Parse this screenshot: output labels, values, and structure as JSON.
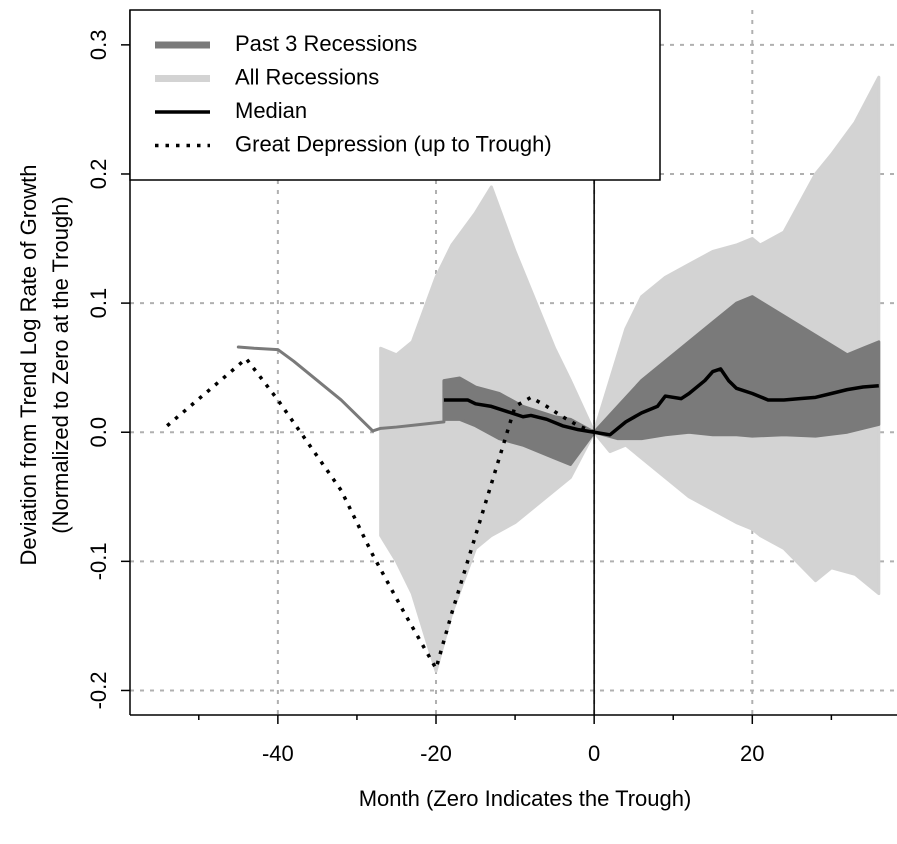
{
  "chart_data": {
    "type": "line",
    "xlabel": "Month (Zero Indicates the Trough)",
    "ylabel": [
      "Deviation from Trend Log Rate of Growth",
      "(Normalized to Zero at the Trough)"
    ],
    "xlim": [
      -58.7,
      38.3
    ],
    "ylim": [
      -0.219,
      0.327
    ],
    "xticks": [
      -40,
      -20,
      0,
      20
    ],
    "xminorticks": [
      -50,
      -30,
      -10,
      10,
      30
    ],
    "yticks": [
      {
        "value": -0.2,
        "label": "-0.2"
      },
      {
        "value": -0.1,
        "label": "-0.1"
      },
      {
        "value": 0,
        "label": "0.0"
      },
      0.1,
      0.2,
      0.3
    ],
    "grid": true,
    "vline": 0,
    "legend": "top-left",
    "series": [
      {
        "name": "Past 3 Recessions",
        "color": "#7a7a7a",
        "kind": "band",
        "x": [
          -45,
          -43,
          -40,
          -38,
          -35,
          -32,
          -30,
          -28,
          -27,
          -25,
          -22,
          -19,
          -19,
          -17,
          -15,
          -12,
          -9,
          -5,
          -3,
          0,
          3,
          6,
          9,
          12,
          15,
          18,
          20,
          24,
          28,
          32,
          34,
          36
        ],
        "upper": [
          0.066,
          0.065,
          0.064,
          0.055,
          0.04,
          0.025,
          0.013,
          0.001,
          0.003,
          0.004,
          0.006,
          0.008,
          0.04,
          0.042,
          0.035,
          0.03,
          0.02,
          0.012,
          0.01,
          0,
          0.02,
          0.04,
          0.055,
          0.07,
          0.085,
          0.1,
          0.105,
          0.09,
          0.075,
          0.06,
          0.065,
          0.07
        ],
        "lower": [
          0.066,
          0.065,
          0.064,
          0.055,
          0.04,
          0.025,
          0.013,
          0.001,
          0.003,
          0.004,
          0.006,
          0.008,
          0.01,
          0.01,
          0.005,
          -0.005,
          -0.01,
          -0.02,
          -0.025,
          0,
          -0.005,
          -0.005,
          -0.002,
          0,
          -0.002,
          -0.002,
          -0.003,
          -0.002,
          -0.003,
          0,
          0.003,
          0.006
        ]
      },
      {
        "name": "All Recessions",
        "color": "#d3d3d3",
        "kind": "band",
        "x": [
          -27,
          -25,
          -23,
          -20,
          -18,
          -15,
          -13,
          -10,
          -8,
          -5,
          -3,
          0,
          2,
          4,
          6,
          9,
          12,
          15,
          18,
          20,
          21,
          24,
          28,
          30,
          33,
          36
        ],
        "upper": [
          0.065,
          0.06,
          0.07,
          0.12,
          0.145,
          0.17,
          0.19,
          0.14,
          0.11,
          0.065,
          0.04,
          0,
          0.04,
          0.08,
          0.105,
          0.12,
          0.13,
          0.14,
          0.145,
          0.15,
          0.145,
          0.155,
          0.2,
          0.215,
          0.24,
          0.275
        ],
        "lower": [
          -0.08,
          -0.1,
          -0.125,
          -0.185,
          -0.14,
          -0.09,
          -0.08,
          -0.07,
          -0.06,
          -0.045,
          -0.035,
          0,
          -0.015,
          -0.01,
          -0.02,
          -0.035,
          -0.05,
          -0.06,
          -0.07,
          -0.075,
          -0.08,
          -0.09,
          -0.115,
          -0.105,
          -0.11,
          -0.125
        ]
      },
      {
        "name": "Median",
        "color": "#000000",
        "kind": "line",
        "x": [
          -19,
          -16,
          -15,
          -13,
          -11,
          -9,
          -8,
          -6,
          -4,
          -2,
          0,
          2,
          4,
          6,
          8,
          9,
          11,
          12,
          14,
          15,
          16,
          17,
          18,
          20,
          22,
          24,
          26,
          28,
          30,
          32,
          34,
          36
        ],
        "values": [
          0.025,
          0.025,
          0.022,
          0.02,
          0.016,
          0.012,
          0.013,
          0.01,
          0.005,
          0.002,
          0,
          -0.002,
          0.008,
          0.015,
          0.02,
          0.028,
          0.026,
          0.03,
          0.04,
          0.047,
          0.049,
          0.04,
          0.034,
          0.03,
          0.025,
          0.025,
          0.026,
          0.027,
          0.03,
          0.033,
          0.035,
          0.036
        ]
      },
      {
        "name": "Great Depression (up to Trough)",
        "color": "#000000",
        "kind": "line",
        "dashed": true,
        "x": [
          -54,
          -44,
          -40,
          -36,
          -32,
          -28,
          -24,
          -20,
          -18,
          -16,
          -14,
          -12,
          -10,
          -8,
          -6,
          -4,
          -2,
          0
        ],
        "values": [
          0.005,
          0.057,
          0.025,
          -0.01,
          -0.045,
          -0.095,
          -0.14,
          -0.183,
          -0.14,
          -0.1,
          -0.06,
          -0.02,
          0.02,
          0.027,
          0.02,
          0.012,
          0.005,
          0
        ]
      }
    ]
  }
}
